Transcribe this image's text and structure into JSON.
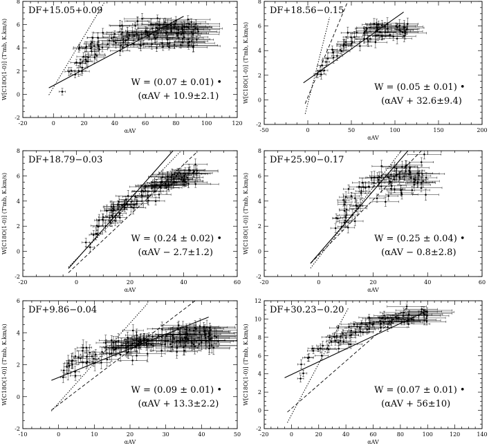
{
  "figure": {
    "background": "#ffffff",
    "ink": "#000000"
  },
  "chart_data": [
    {
      "type": "scatter",
      "title": "DF+15.05+0.09",
      "xlabel": "αAV",
      "ylabel": "W[C18O(1-0)] (T'mb, K.km/s)",
      "xlim": [
        -20,
        120
      ],
      "ylim": [
        -2,
        8
      ],
      "xticks": [
        "-20",
        "0",
        "20",
        "40",
        "60",
        "80",
        "100",
        "120"
      ],
      "yticks": [
        "-2",
        "0",
        "2",
        "4",
        "6",
        "8"
      ],
      "formula_line1": "W = (0.07 ± 0.01) •",
      "formula_line2": "(αAV + 10.9±2.1)",
      "cloud": {
        "x": [
          5,
          95
        ],
        "curve_a": 1.2,
        "curve_b": 4.2,
        "curve_k": 0.045,
        "scatter": 1.2,
        "n": 150
      },
      "fit_solid": {
        "x": [
          -3,
          85
        ],
        "slope": 0.07,
        "intercept": 0.763
      },
      "fit_dotted": {
        "x": [
          -3,
          35
        ],
        "slope": 0.22,
        "intercept": 0.6
      },
      "fit_dashed": null
    },
    {
      "type": "scatter",
      "title": "DF+18.56−0.15",
      "xlabel": "αAV",
      "ylabel": "W[C18O(1-0)] (T'mb, K.km/s)",
      "xlim": [
        -50,
        200
      ],
      "ylim": [
        -2,
        8
      ],
      "xticks": [
        "-50",
        "0",
        "50",
        "100",
        "150",
        "200"
      ],
      "yticks": [
        "-2",
        "0",
        "2",
        "4",
        "6",
        "8"
      ],
      "formula_line1": "W = (0.05 ± 0.01) •",
      "formula_line2": "(αAV + 32.6±9.4)",
      "cloud": {
        "x": [
          8,
          115
        ],
        "curve_a": 1.8,
        "curve_b": 4.2,
        "curve_k": 0.03,
        "scatter": 0.8,
        "n": 70
      },
      "fit_solid": {
        "x": [
          -5,
          110
        ],
        "slope": 0.05,
        "intercept": 1.63
      },
      "fit_dotted": {
        "x": [
          -3,
          25
        ],
        "slope": 0.28,
        "intercept": -0.3
      },
      "fit_dashed": {
        "x": [
          -3,
          45
        ],
        "slope": 0.17,
        "intercept": 0.2
      }
    },
    {
      "type": "scatter",
      "title": "DF+18.79−0.03",
      "xlabel": "αAV",
      "ylabel": "W[C18O(1-0)] (T'mb, K.km/s)",
      "xlim": [
        -20,
        60
      ],
      "ylim": [
        -2,
        8
      ],
      "xticks": [
        "-20",
        "0",
        "20",
        "40",
        "60"
      ],
      "yticks": [
        "-2",
        "0",
        "2",
        "4",
        "6",
        "8"
      ],
      "formula_line1": "W = (0.24 ± 0.02) •",
      "formula_line2": "(αAV − 2.7±1.2)",
      "cloud": {
        "x": [
          3,
          45
        ],
        "curve_a": 0.6,
        "curve_b": 6.8,
        "curve_k": 0.04,
        "scatter": 0.8,
        "n": 110
      },
      "fit_solid": {
        "x": [
          -3,
          45
        ],
        "slope": 0.24,
        "intercept": -0.65
      },
      "fit_dotted": {
        "x": [
          -3,
          40
        ],
        "slope": 0.22,
        "intercept": -0.6
      },
      "fit_dashed": {
        "x": [
          -3,
          45
        ],
        "slope": 0.2,
        "intercept": -1.1
      }
    },
    {
      "type": "scatter",
      "title": "DF+25.90−0.17",
      "xlabel": "αAV",
      "ylabel": "W[C18O(1-0)] (T'mb, K.km/s)",
      "xlim": [
        -20,
        60
      ],
      "ylim": [
        -2,
        8
      ],
      "xticks": [
        "-20",
        "0",
        "20",
        "40",
        "60"
      ],
      "yticks": [
        "-2",
        "0",
        "2",
        "4",
        "6",
        "8"
      ],
      "formula_line1": "W = (0.25 ± 0.04) •",
      "formula_line2": "(αAV − 0.8±2.8)",
      "cloud": {
        "x": [
          3,
          40
        ],
        "curve_a": 1.2,
        "curve_b": 5.2,
        "curve_k": 0.08,
        "scatter": 1.5,
        "n": 90
      },
      "fit_solid": {
        "x": [
          -3,
          38
        ],
        "slope": 0.25,
        "intercept": -0.2
      },
      "fit_dotted": {
        "x": [
          -3,
          36
        ],
        "slope": 0.28,
        "intercept": -0.5
      },
      "fit_dashed": {
        "x": [
          -3,
          40
        ],
        "slope": 0.22,
        "intercept": -0.3
      }
    },
    {
      "type": "scatter",
      "title": "DF+9.86−0.04",
      "xlabel": "αAV",
      "ylabel": "W[C18O(1-0)] (T'mb, K.km/s)",
      "xlim": [
        -10,
        50
      ],
      "ylim": [
        -2,
        6
      ],
      "xticks": [
        "-10",
        "0",
        "10",
        "20",
        "30",
        "40",
        "50"
      ],
      "yticks": [
        "-2",
        "0",
        "2",
        "4",
        "6"
      ],
      "formula_line1": "W = (0.09 ± 0.01) •",
      "formula_line2": "(αAV + 13.3±2.2)",
      "cloud": {
        "x": [
          1,
          45
        ],
        "curve_a": 1.5,
        "curve_b": 2.5,
        "curve_k": 0.06,
        "scatter": 0.8,
        "n": 160
      },
      "fit_solid": {
        "x": [
          -2,
          42
        ],
        "slope": 0.09,
        "intercept": 1.2
      },
      "fit_dotted": {
        "x": [
          -2,
          25
        ],
        "slope": 0.25,
        "intercept": -0.4
      },
      "fit_dashed": {
        "x": [
          -2,
          40
        ],
        "slope": 0.17,
        "intercept": -0.5
      }
    },
    {
      "type": "scatter",
      "title": "DF+30.23−0.20",
      "xlabel": "αAV",
      "ylabel": "W[C18O(1-0)] (T'mb, K.km/s)",
      "xlim": [
        -20,
        140
      ],
      "ylim": [
        -2,
        12
      ],
      "xticks": [
        "-20",
        "0",
        "20",
        "40",
        "60",
        "80",
        "100",
        "120",
        "140"
      ],
      "yticks": [
        "-2",
        "0",
        "2",
        "4",
        "6",
        "8",
        "10",
        "12"
      ],
      "formula_line1": "W = (0.07 ± 0.01) •",
      "formula_line2": "(αAV + 56±10)",
      "cloud": {
        "x": [
          5,
          100
        ],
        "curve_a": 4.5,
        "curve_b": 6.5,
        "curve_k": 0.025,
        "scatter": 1.0,
        "n": 90
      },
      "fit_solid": {
        "x": [
          -5,
          100
        ],
        "slope": 0.07,
        "intercept": 3.92
      },
      "fit_dotted": {
        "x": [
          -3,
          42
        ],
        "slope": 0.28,
        "intercept": -0.5
      },
      "fit_dashed": {
        "x": [
          -3,
          85
        ],
        "slope": 0.13,
        "intercept": 0.2
      }
    }
  ]
}
